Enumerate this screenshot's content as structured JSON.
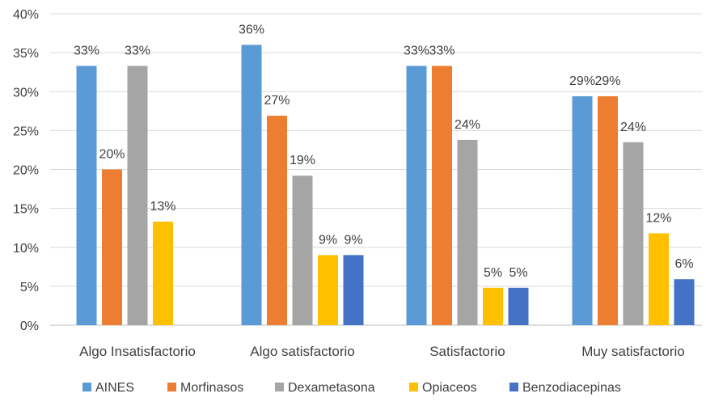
{
  "chart_data": {
    "type": "bar",
    "categories": [
      "Algo Insatisfactorio",
      "Algo satisfactorio",
      "Satisfactorio",
      "Muy satisfactorio"
    ],
    "series": [
      {
        "name": "AINES",
        "color": "#5B9BD5",
        "values": [
          33,
          36,
          33,
          29
        ],
        "labels": [
          "33%",
          "36%",
          "33%",
          "29%"
        ]
      },
      {
        "name": "Morfinasos",
        "color": "#ED7D31",
        "values": [
          20,
          27,
          33,
          29
        ],
        "labels": [
          "20%",
          "27%",
          "33%",
          "29%"
        ]
      },
      {
        "name": "Dexametasona",
        "color": "#A5A5A5",
        "values": [
          33,
          19,
          24,
          24
        ],
        "labels": [
          "33%",
          "19%",
          "24%",
          "24%"
        ]
      },
      {
        "name": "Opiaceos",
        "color": "#FFC000",
        "values": [
          13,
          9,
          5,
          12
        ],
        "labels": [
          "13%",
          "9%",
          "5%",
          "12%"
        ]
      },
      {
        "name": "Benzodiacepinas",
        "color": "#4472C4",
        "values": [
          null,
          9,
          5,
          6
        ],
        "labels": [
          null,
          "9%",
          "5%",
          "6%"
        ]
      }
    ],
    "bar_values_precise": [
      [
        33.3,
        20.0,
        33.3,
        13.3,
        null
      ],
      [
        36.0,
        26.9,
        19.2,
        9.0,
        9.0
      ],
      [
        33.3,
        33.3,
        23.8,
        4.8,
        4.8
      ],
      [
        29.4,
        29.4,
        23.5,
        11.8,
        5.9
      ]
    ],
    "yticks": [
      "0%",
      "5%",
      "10%",
      "15%",
      "20%",
      "25%",
      "30%",
      "35%",
      "40%"
    ],
    "ylim": [
      0,
      40
    ],
    "grid": true,
    "legend_position": "bottom"
  }
}
